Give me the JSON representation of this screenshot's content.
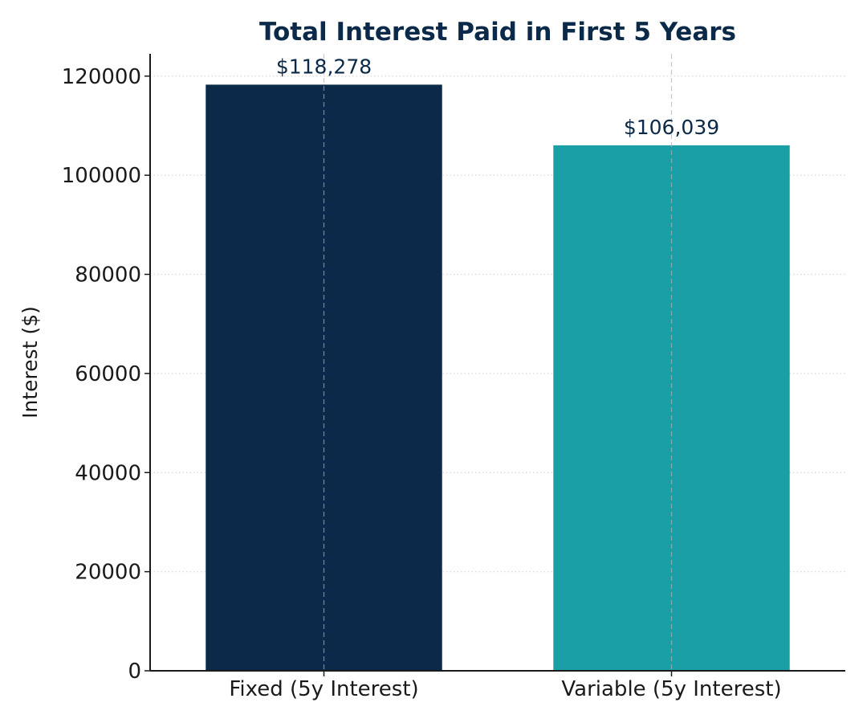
{
  "chart_data": {
    "type": "bar",
    "title": "Total Interest Paid in First 5 Years",
    "xlabel": "",
    "ylabel": "Interest ($)",
    "categories": [
      "Fixed (5y Interest)",
      "Variable (5y Interest)"
    ],
    "values": [
      118278,
      106039
    ],
    "data_labels": [
      "$118,278",
      "$106,039"
    ],
    "bar_colors": [
      "#0b2948",
      "#1a9fa6"
    ],
    "title_color": "#0b2948",
    "data_label_color": "#0b2948",
    "ylim": [
      0,
      124500
    ],
    "yticks": [
      0,
      20000,
      40000,
      60000,
      80000,
      100000,
      120000
    ],
    "ytick_labels": [
      "0",
      "20000",
      "40000",
      "60000",
      "80000",
      "100000",
      "120000"
    ],
    "grid": true,
    "legend": "none"
  }
}
